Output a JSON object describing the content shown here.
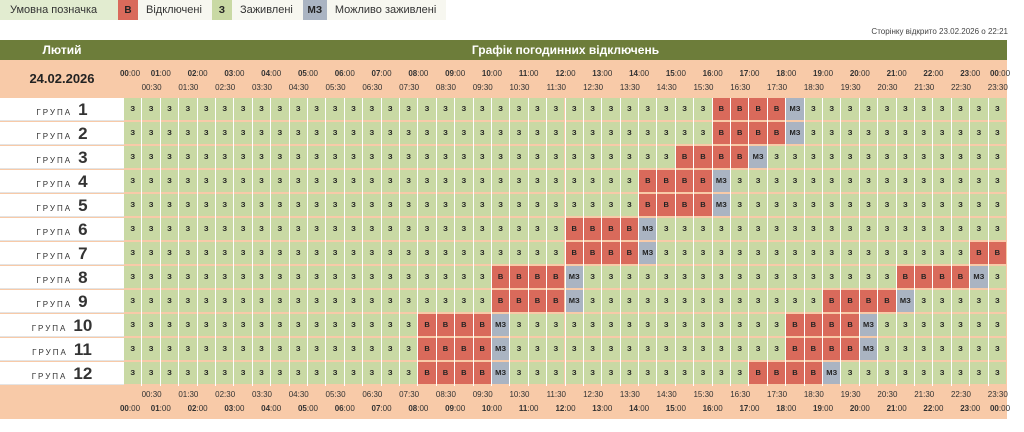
{
  "legend": {
    "title": "Умовна позначка",
    "items": [
      {
        "code": "В",
        "label": "Відключені",
        "color": "#d96a5b"
      },
      {
        "code": "З",
        "label": "Заживлені",
        "color": "#c9d9a4"
      },
      {
        "code": "МЗ",
        "label": "Можливо заживлені",
        "color": "#aab4c2"
      }
    ]
  },
  "opened_text": "Сторінку відкрито 23.02.2026 о 22:21",
  "month": "Лютий",
  "title": "Графік погодинних відключень",
  "date": "24.02.2026",
  "group_word": "ГРУПА",
  "groups": [
    "1",
    "2",
    "3",
    "4",
    "5",
    "6",
    "7",
    "8",
    "9",
    "10",
    "11",
    "12"
  ],
  "hours": [
    "00",
    "01",
    "02",
    "03",
    "04",
    "05",
    "06",
    "07",
    "08",
    "09",
    "10",
    "11",
    "12",
    "13",
    "14",
    "15",
    "16",
    "17",
    "18",
    "19",
    "20",
    "21",
    "22",
    "23",
    "00"
  ],
  "half_hours": [
    "00:30",
    "01:30",
    "02:30",
    "03:30",
    "04:30",
    "05:30",
    "06:30",
    "07:30",
    "08:30",
    "09:30",
    "10:30",
    "11:30",
    "12:30",
    "13:30",
    "14:30",
    "15:30",
    "16:30",
    "17:30",
    "18:30",
    "19:30",
    "20:30",
    "21:30",
    "22:30",
    "23:30"
  ],
  "minute_suffix": ":00",
  "colors": {
    "В": "#d96a5b",
    "З": "#c9d9a4",
    "МЗ": "#aab4c2"
  },
  "schedule": [
    {
      "group": "1",
      "outages": [
        {
          "from": "16:00",
          "to": "18:00",
          "status": "В"
        },
        {
          "from": "18:00",
          "to": "18:30",
          "status": "МЗ"
        }
      ]
    },
    {
      "group": "2",
      "outages": [
        {
          "from": "16:00",
          "to": "18:00",
          "status": "В"
        },
        {
          "from": "18:00",
          "to": "18:30",
          "status": "МЗ"
        }
      ]
    },
    {
      "group": "3",
      "outages": [
        {
          "from": "15:00",
          "to": "17:00",
          "status": "В"
        },
        {
          "from": "17:00",
          "to": "17:30",
          "status": "МЗ"
        }
      ]
    },
    {
      "group": "4",
      "outages": [
        {
          "from": "14:00",
          "to": "16:00",
          "status": "В"
        },
        {
          "from": "16:00",
          "to": "16:30",
          "status": "МЗ"
        }
      ]
    },
    {
      "group": "5",
      "outages": [
        {
          "from": "14:00",
          "to": "16:00",
          "status": "В"
        },
        {
          "from": "16:00",
          "to": "16:30",
          "status": "МЗ"
        }
      ]
    },
    {
      "group": "6",
      "outages": [
        {
          "from": "12:00",
          "to": "14:00",
          "status": "В"
        },
        {
          "from": "14:00",
          "to": "14:30",
          "status": "МЗ"
        }
      ]
    },
    {
      "group": "7",
      "outages": [
        {
          "from": "12:00",
          "to": "14:00",
          "status": "В"
        },
        {
          "from": "14:00",
          "to": "14:30",
          "status": "МЗ"
        },
        {
          "from": "23:00",
          "to": "24:00",
          "status": "В"
        }
      ]
    },
    {
      "group": "8",
      "outages": [
        {
          "from": "10:00",
          "to": "12:00",
          "status": "В"
        },
        {
          "from": "12:00",
          "to": "12:30",
          "status": "МЗ"
        },
        {
          "from": "21:00",
          "to": "23:00",
          "status": "В"
        },
        {
          "from": "23:00",
          "to": "23:30",
          "status": "МЗ"
        }
      ]
    },
    {
      "group": "9",
      "outages": [
        {
          "from": "10:00",
          "to": "12:00",
          "status": "В"
        },
        {
          "from": "12:00",
          "to": "12:30",
          "status": "МЗ"
        },
        {
          "from": "19:00",
          "to": "21:00",
          "status": "В"
        },
        {
          "from": "21:00",
          "to": "21:30",
          "status": "МЗ"
        }
      ]
    },
    {
      "group": "10",
      "outages": [
        {
          "from": "08:00",
          "to": "10:00",
          "status": "В"
        },
        {
          "from": "10:00",
          "to": "10:30",
          "status": "МЗ"
        },
        {
          "from": "18:00",
          "to": "20:00",
          "status": "В"
        },
        {
          "from": "20:00",
          "to": "20:30",
          "status": "МЗ"
        }
      ]
    },
    {
      "group": "11",
      "outages": [
        {
          "from": "08:00",
          "to": "10:00",
          "status": "В"
        },
        {
          "from": "10:00",
          "to": "10:30",
          "status": "МЗ"
        },
        {
          "from": "18:00",
          "to": "20:00",
          "status": "В"
        },
        {
          "from": "20:00",
          "to": "20:30",
          "status": "МЗ"
        }
      ]
    },
    {
      "group": "12",
      "outages": [
        {
          "from": "08:00",
          "to": "10:00",
          "status": "В"
        },
        {
          "from": "10:00",
          "to": "10:30",
          "status": "МЗ"
        },
        {
          "from": "17:00",
          "to": "19:00",
          "status": "В"
        },
        {
          "from": "19:00",
          "to": "19:30",
          "status": "МЗ"
        }
      ]
    }
  ]
}
